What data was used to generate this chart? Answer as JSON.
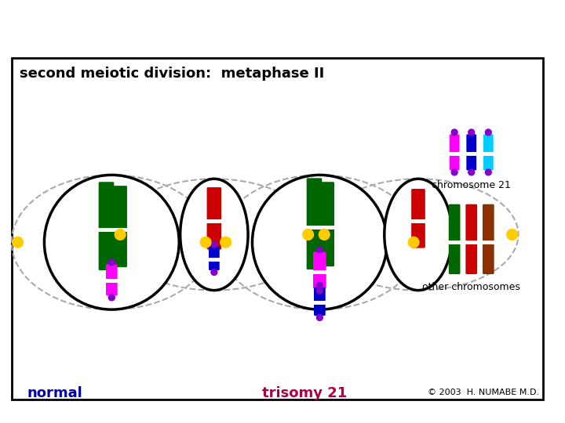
{
  "title": "second meiotic division:  metaphase II",
  "title_fontsize": 13,
  "bg_color": "#ffffff",
  "border_color": "#000000",
  "label_normal": "normal",
  "label_trisomy": "trisomy 21",
  "label_chr21": "chromosome 21",
  "label_other": "other chromosomes",
  "label_copyright": "© 2003  H. NUMABE M.D.",
  "label_normal_color": "#0000aa",
  "label_trisomy_color": "#aa0044",
  "label_chr21_color": "#000000",
  "label_other_color": "#000000",
  "label_copy_color": "#000000",
  "green": "#006600",
  "red": "#cc0000",
  "magenta": "#ff00ff",
  "blue": "#0000cc",
  "cyan": "#00ccff",
  "purple": "#8800cc",
  "brown": "#8B3000",
  "yellow": "#ffcc00",
  "gray": "#aaaaaa"
}
